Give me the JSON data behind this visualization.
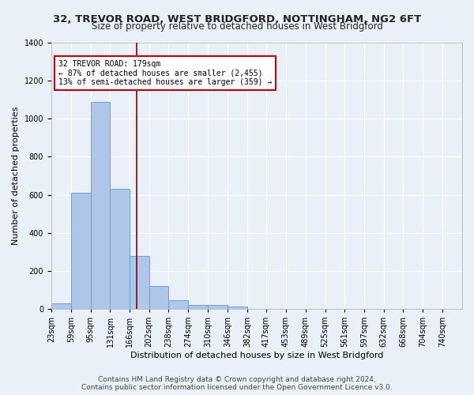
{
  "title": "32, TREVOR ROAD, WEST BRIDGFORD, NOTTINGHAM, NG2 6FT",
  "subtitle": "Size of property relative to detached houses in West Bridgford",
  "xlabel": "Distribution of detached houses by size in West Bridgford",
  "ylabel": "Number of detached properties",
  "footnote": "Contains HM Land Registry data © Crown copyright and database right 2024.\nContains public sector information licensed under the Open Government Licence v3.0.",
  "bin_labels": [
    "23sqm",
    "59sqm",
    "95sqm",
    "131sqm",
    "166sqm",
    "202sqm",
    "238sqm",
    "274sqm",
    "310sqm",
    "346sqm",
    "382sqm",
    "417sqm",
    "453sqm",
    "489sqm",
    "525sqm",
    "561sqm",
    "597sqm",
    "632sqm",
    "668sqm",
    "704sqm",
    "740sqm"
  ],
  "bin_edges": [
    23,
    59,
    95,
    131,
    166,
    202,
    238,
    274,
    310,
    346,
    382,
    417,
    453,
    489,
    525,
    561,
    597,
    632,
    668,
    704,
    740
  ],
  "bar_heights": [
    30,
    610,
    1090,
    630,
    280,
    120,
    47,
    22,
    20,
    12,
    0,
    0,
    0,
    0,
    0,
    0,
    0,
    0,
    0,
    0
  ],
  "bar_color": "#aec6e8",
  "bar_edge_color": "#5b9bd5",
  "vline_x": 179,
  "vline_color": "#8b0000",
  "annotation_line1": "32 TREVOR ROAD: 179sqm",
  "annotation_line2": "← 87% of detached houses are smaller (2,455)",
  "annotation_line3": "13% of semi-detached houses are larger (359) →",
  "annotation_box_color": "#ffffff",
  "annotation_box_edge": "#cc0000",
  "ylim": [
    0,
    1400
  ],
  "yticks": [
    0,
    200,
    400,
    600,
    800,
    1000,
    1200,
    1400
  ],
  "background_color": "#eaf0f8",
  "grid_color": "#ffffff",
  "title_fontsize": 9.5,
  "subtitle_fontsize": 8.5,
  "axis_label_fontsize": 8,
  "tick_fontsize": 7,
  "footnote_fontsize": 6.5
}
